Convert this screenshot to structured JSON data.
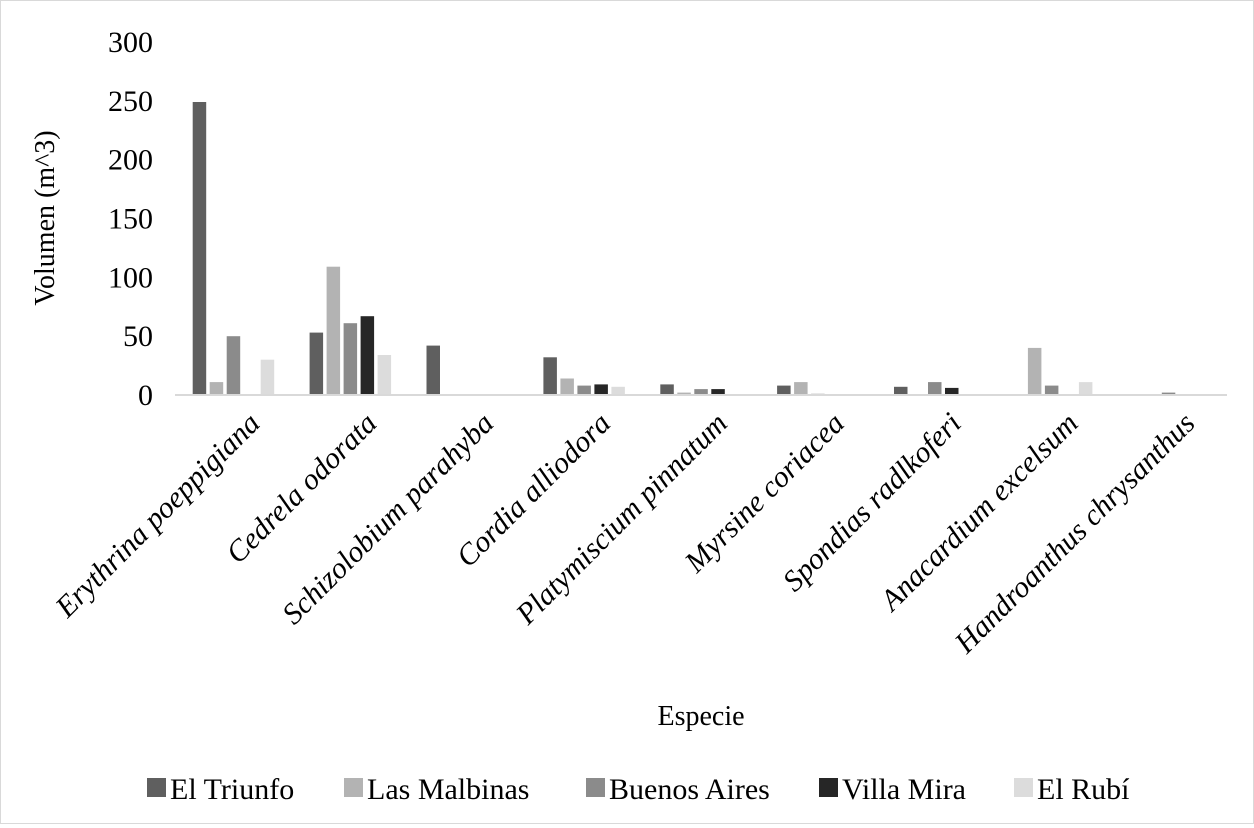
{
  "chart_data": {
    "type": "bar",
    "title": "",
    "xlabel": "Especie",
    "ylabel": "Volumen (m^3)",
    "ylim": [
      0,
      300
    ],
    "yticks": [
      0,
      50,
      100,
      150,
      200,
      250,
      300
    ],
    "grid": false,
    "legend_position": "bottom",
    "categories": [
      "Erythrina poeppigiana",
      "Cedrela odorata",
      "Schizolobium parahyba",
      "Cordia alliodora",
      "Platymiscium pinnatum",
      "Myrsine coriacea",
      "Spondias radlkoferi",
      "Anacardium excelsum",
      "Handroanthus chrysanthus"
    ],
    "series": [
      {
        "name": "El Triunfo",
        "color": "#5f5f5f",
        "values": [
          249,
          53,
          42,
          32,
          9,
          8,
          7,
          0,
          0
        ]
      },
      {
        "name": "Las Malbinas",
        "color": "#b3b3b3",
        "values": [
          11,
          109,
          0,
          14,
          2,
          11,
          0,
          40,
          0
        ]
      },
      {
        "name": "Buenos Aires",
        "color": "#8b8b8b",
        "values": [
          50,
          61,
          0,
          8,
          5,
          1,
          11,
          8,
          2
        ]
      },
      {
        "name": "Villa Mira",
        "color": "#262626",
        "values": [
          0,
          67,
          0,
          9,
          5,
          0,
          6,
          0,
          0
        ]
      },
      {
        "name": "El Rubí",
        "color": "#dcdcdc",
        "values": [
          30,
          34,
          0,
          7,
          0,
          0,
          0,
          11,
          0
        ]
      }
    ]
  }
}
